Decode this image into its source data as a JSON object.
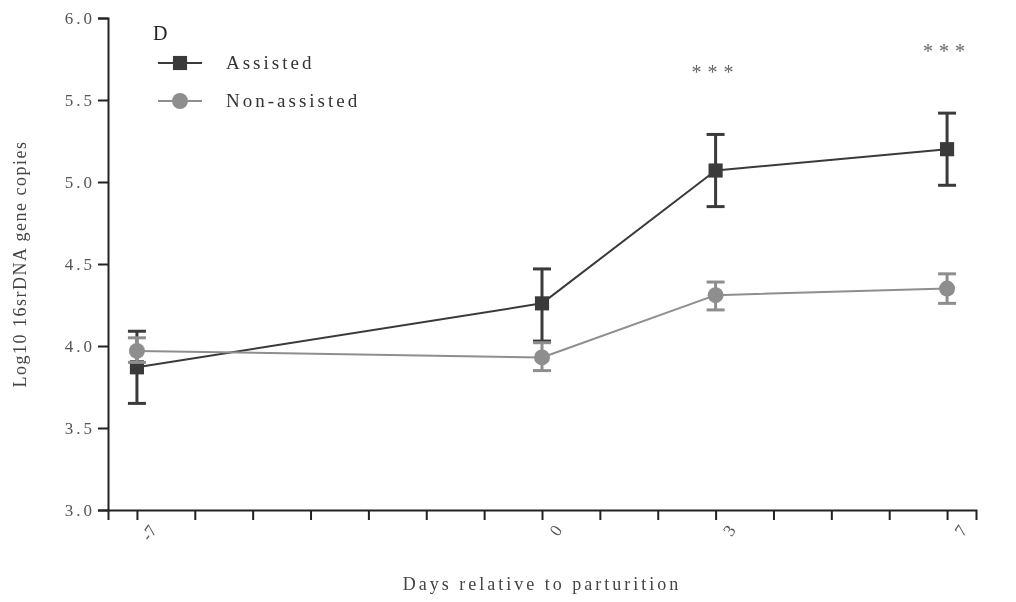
{
  "chart_data": {
    "type": "line",
    "xlabel": "Days relative to parturition",
    "ylabel": "Log10 16srDNA gene copies",
    "x": [
      -7,
      0,
      3,
      7
    ],
    "xlim": [
      -7.5,
      7.5
    ],
    "xticks": [
      -7,
      {
        "value": -6,
        "label": null
      },
      {
        "value": -5,
        "label": null
      },
      {
        "value": -4,
        "label": null
      },
      {
        "value": -3,
        "label": null
      },
      {
        "value": -2,
        "label": null
      },
      {
        "value": -1,
        "label": null
      },
      0,
      {
        "value": 1,
        "label": null
      },
      {
        "value": 2,
        "label": null
      },
      3,
      {
        "value": 4,
        "label": null
      },
      {
        "value": 5,
        "label": null
      },
      {
        "value": 6,
        "label": null
      },
      7
    ],
    "ylim": [
      3,
      6
    ],
    "yticks": [
      {
        "value": 3,
        "label": "3.0"
      },
      {
        "value": 3.5,
        "label": "3.5"
      },
      {
        "value": 4,
        "label": "4.0"
      },
      {
        "value": 4.5,
        "label": "4.5"
      },
      {
        "value": 5,
        "label": "5.0"
      },
      {
        "value": 5.5,
        "label": "5.5"
      },
      {
        "value": 6,
        "label": "6.0"
      }
    ],
    "series": [
      {
        "name": "Assisted",
        "color": "#3a3a3a",
        "marker": "square",
        "values": [
          3.87,
          4.26,
          5.07,
          5.2
        ],
        "errors": [
          [
            3.65,
            4.09
          ],
          [
            4.03,
            4.47
          ],
          [
            4.85,
            5.29
          ],
          [
            4.98,
            5.42
          ]
        ]
      },
      {
        "name": "Non-assisted",
        "color": "#8e8e8e",
        "marker": "circle",
        "values": [
          3.97,
          3.93,
          4.31,
          4.35
        ],
        "errors": [
          [
            3.9,
            4.05
          ],
          [
            3.85,
            4.02
          ],
          [
            4.22,
            4.39
          ],
          [
            4.26,
            4.44
          ]
        ]
      }
    ],
    "annotations": [
      "D",
      "***",
      "***"
    ],
    "legend": "top left",
    "grid": false,
    "line_style": "solid"
  }
}
